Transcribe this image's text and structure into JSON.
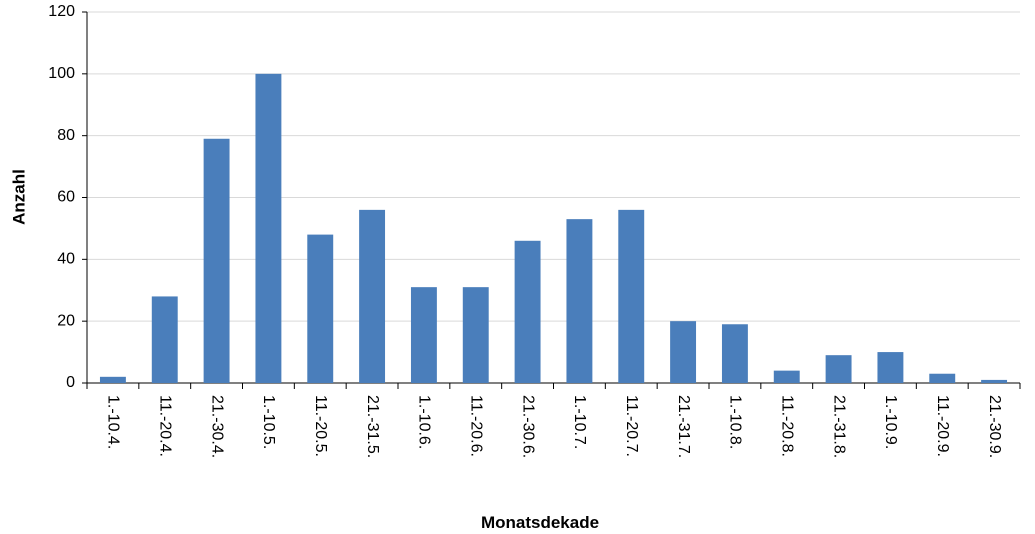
{
  "chart_data": {
    "type": "bar",
    "x_label": "Monatsdekade",
    "y_label": "Anzahl",
    "categories": [
      "1.-10.4.",
      "11.-20.4.",
      "21.-30.4.",
      "1.-10.5.",
      "11.-20.5.",
      "21.-31.5.",
      "1.-10.6.",
      "11.-20.6.",
      "21.-30.6.",
      "1.-10.7.",
      "11.-20.7.",
      "21.-31.7.",
      "1.-10.8.",
      "11.-20.8.",
      "21.-31.8.",
      "1.-10.9.",
      "11.-20.9.",
      "21.-30.9."
    ],
    "values": [
      2,
      28,
      79,
      100,
      48,
      56,
      31,
      31,
      46,
      53,
      56,
      20,
      19,
      4,
      9,
      10,
      3,
      1
    ],
    "color": "#4a7ebb",
    "ylim": [
      0,
      120
    ],
    "yticks": [
      0,
      20,
      40,
      60,
      80,
      100,
      120
    ],
    "grid": true
  }
}
